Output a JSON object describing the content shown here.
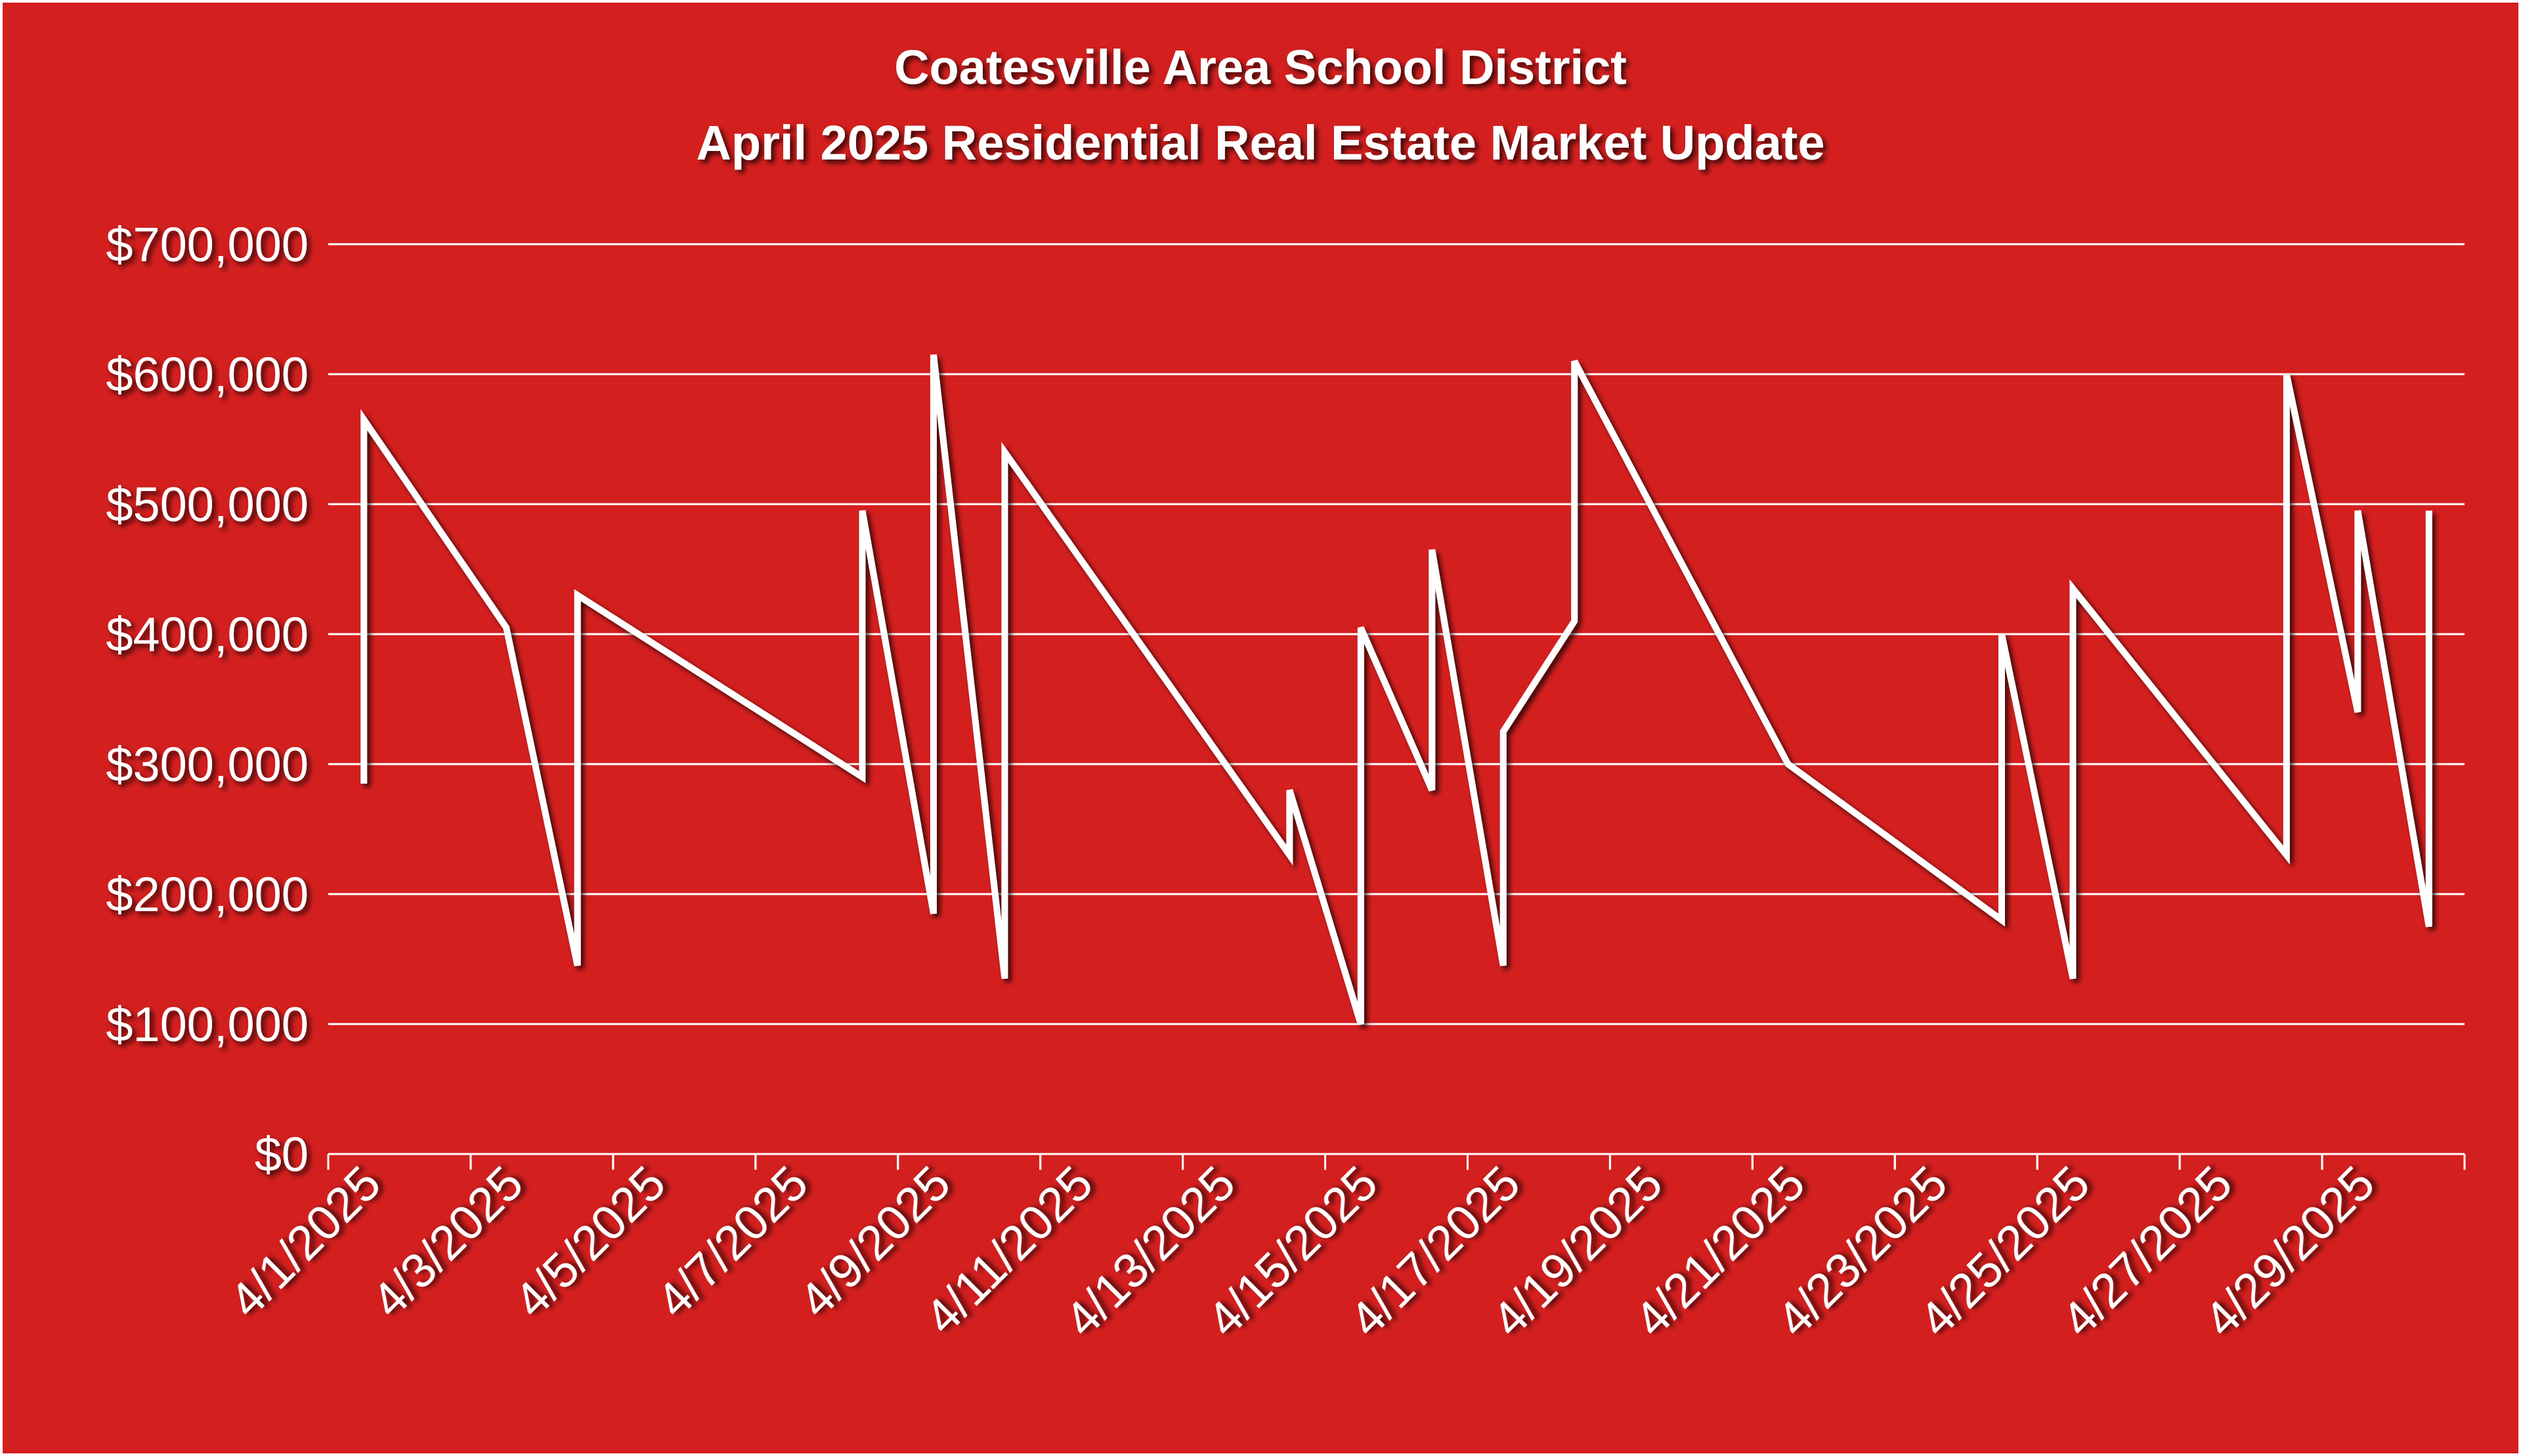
{
  "chart_data": {
    "type": "line",
    "title": "Coatesville Area School District",
    "subtitle": "April 2025 Residential Real Estate Market Update",
    "x": [
      "4/1/2025",
      "4/1/2025",
      "4/3/2025",
      "4/4/2025",
      "4/4/2025",
      "4/8/2025",
      "4/8/2025",
      "4/9/2025",
      "4/9/2025",
      "4/10/2025",
      "4/10/2025",
      "4/14/2025",
      "4/14/2025",
      "4/15/2025",
      "4/15/2025",
      "4/16/2025",
      "4/16/2025",
      "4/17/2025",
      "4/17/2025",
      "4/18/2025",
      "4/18/2025",
      "4/21/2025",
      "4/24/2025",
      "4/24/2025",
      "4/25/2025",
      "4/25/2025",
      "4/28/2025",
      "4/28/2025",
      "4/29/2025",
      "4/29/2025",
      "4/30/2025",
      "4/30/2025"
    ],
    "series": [
      {
        "color": "#ffffff",
        "values": [
          285000,
          565000,
          405000,
          145000,
          430000,
          290000,
          495000,
          185000,
          615000,
          135000,
          540000,
          230000,
          280000,
          100000,
          405000,
          280000,
          465000,
          145000,
          325000,
          410000,
          610000,
          300000,
          180000,
          400000,
          135000,
          435000,
          230000,
          600000,
          340000,
          495000,
          175000,
          495000
        ]
      }
    ],
    "xlim": [
      "4/1/2025",
      "4/30/2025"
    ],
    "xticks": [
      "4/1/2025",
      "4/3/2025",
      "4/5/2025",
      "4/7/2025",
      "4/9/2025",
      "4/11/2025",
      "4/13/2025",
      "4/15/2025",
      "4/17/2025",
      "4/19/2025",
      "4/21/2025",
      "4/23/2025",
      "4/25/2025",
      "4/27/2025",
      "4/29/2025"
    ],
    "ylim": [
      0,
      700000
    ],
    "yticks": [
      {
        "value": 0,
        "label": "$0"
      },
      {
        "value": 100000,
        "label": "$100,000"
      },
      {
        "value": 200000,
        "label": "$200,000"
      },
      {
        "value": 300000,
        "label": "$300,000"
      },
      {
        "value": 400000,
        "label": "$400,000"
      },
      {
        "value": 500000,
        "label": "$500,000"
      },
      {
        "value": 600000,
        "label": "$600,000"
      },
      {
        "value": 700000,
        "label": "$700,000"
      }
    ],
    "grid": true
  }
}
